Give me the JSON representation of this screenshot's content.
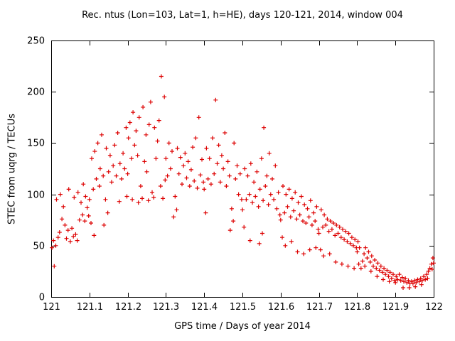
{
  "chart_data": {
    "type": "scatter",
    "title": "Rec. ntus (Lon=103, Lat=1, h=HE), days 120-121, 2014, window 004",
    "xlabel": "GPS time / Days of year 2014",
    "ylabel": "STEC from uqrg / TECUs",
    "xlim": [
      121,
      122
    ],
    "ylim": [
      0,
      250
    ],
    "grid": false,
    "legend": "none",
    "frame_color": "#000000",
    "background": "#ffffff",
    "marker": {
      "shape": "plus",
      "color": "#dd0000"
    },
    "x_ticks": [
      {
        "v": 121,
        "label": "121"
      },
      {
        "v": 121.1,
        "label": "121.1"
      },
      {
        "v": 121.2,
        "label": "121.2"
      },
      {
        "v": 121.3,
        "label": "121.3"
      },
      {
        "v": 121.4,
        "label": "121.4"
      },
      {
        "v": 121.5,
        "label": "121.5"
      },
      {
        "v": 121.6,
        "label": "121.6"
      },
      {
        "v": 121.7,
        "label": "121.7"
      },
      {
        "v": 121.8,
        "label": "121.8"
      },
      {
        "v": 121.9,
        "label": "121.9"
      },
      {
        "v": 122,
        "label": "122"
      }
    ],
    "y_ticks": [
      {
        "v": 0,
        "label": "0"
      },
      {
        "v": 50,
        "label": "50"
      },
      {
        "v": 100,
        "label": "100"
      },
      {
        "v": 150,
        "label": "150"
      },
      {
        "v": 200,
        "label": "200"
      },
      {
        "v": 250,
        "label": "250"
      }
    ],
    "points": [
      [
        121.002,
        48
      ],
      [
        121.006,
        55
      ],
      [
        121.008,
        30
      ],
      [
        121.012,
        50
      ],
      [
        121.014,
        95
      ],
      [
        121.018,
        58
      ],
      [
        121.022,
        63
      ],
      [
        121.024,
        100
      ],
      [
        121.028,
        76
      ],
      [
        121.032,
        88
      ],
      [
        121.036,
        70
      ],
      [
        121.04,
        57
      ],
      [
        121.044,
        65
      ],
      [
        121.046,
        105
      ],
      [
        121.05,
        54
      ],
      [
        121.054,
        67
      ],
      [
        121.058,
        59
      ],
      [
        121.06,
        97
      ],
      [
        121.064,
        61
      ],
      [
        121.068,
        55
      ],
      [
        121.07,
        102
      ],
      [
        121.074,
        75
      ],
      [
        121.078,
        92
      ],
      [
        121.082,
        80
      ],
      [
        121.084,
        110
      ],
      [
        121.088,
        74
      ],
      [
        121.09,
        98
      ],
      [
        121.094,
        87
      ],
      [
        121.098,
        79
      ],
      [
        121.1,
        95
      ],
      [
        121.104,
        72
      ],
      [
        121.106,
        135
      ],
      [
        121.11,
        105
      ],
      [
        121.112,
        60
      ],
      [
        121.114,
        142
      ],
      [
        121.118,
        115
      ],
      [
        121.122,
        150
      ],
      [
        121.126,
        108
      ],
      [
        121.128,
        125
      ],
      [
        121.132,
        158
      ],
      [
        121.136,
        118
      ],
      [
        121.138,
        70
      ],
      [
        121.142,
        95
      ],
      [
        121.144,
        145
      ],
      [
        121.148,
        82
      ],
      [
        121.15,
        122
      ],
      [
        121.154,
        138
      ],
      [
        121.158,
        112
      ],
      [
        121.162,
        128
      ],
      [
        121.166,
        148
      ],
      [
        121.17,
        118
      ],
      [
        121.174,
        160
      ],
      [
        121.178,
        93
      ],
      [
        121.18,
        130
      ],
      [
        121.184,
        115
      ],
      [
        121.188,
        140
      ],
      [
        121.192,
        125
      ],
      [
        121.196,
        165
      ],
      [
        121.198,
        98
      ],
      [
        121.2,
        120
      ],
      [
        121.202,
        155
      ],
      [
        121.206,
        170
      ],
      [
        121.21,
        135
      ],
      [
        121.212,
        95
      ],
      [
        121.214,
        180
      ],
      [
        121.218,
        148
      ],
      [
        121.222,
        162
      ],
      [
        121.226,
        138
      ],
      [
        121.228,
        92
      ],
      [
        121.23,
        175
      ],
      [
        121.234,
        108
      ],
      [
        121.238,
        96
      ],
      [
        121.24,
        185
      ],
      [
        121.244,
        132
      ],
      [
        121.248,
        158
      ],
      [
        121.25,
        122
      ],
      [
        121.254,
        94
      ],
      [
        121.256,
        168
      ],
      [
        121.26,
        190
      ],
      [
        121.264,
        102
      ],
      [
        121.268,
        97
      ],
      [
        121.27,
        165
      ],
      [
        121.274,
        135
      ],
      [
        121.278,
        152
      ],
      [
        121.282,
        172
      ],
      [
        121.286,
        108
      ],
      [
        121.288,
        215
      ],
      [
        121.292,
        96
      ],
      [
        121.296,
        195
      ],
      [
        121.298,
        114
      ],
      [
        121.3,
        135
      ],
      [
        121.304,
        118
      ],
      [
        121.308,
        150
      ],
      [
        121.312,
        125
      ],
      [
        121.316,
        142
      ],
      [
        121.32,
        78
      ],
      [
        121.324,
        98
      ],
      [
        121.328,
        85
      ],
      [
        121.33,
        145
      ],
      [
        121.334,
        120
      ],
      [
        121.338,
        136
      ],
      [
        121.342,
        110
      ],
      [
        121.346,
        128
      ],
      [
        121.35,
        140
      ],
      [
        121.354,
        116
      ],
      [
        121.358,
        132
      ],
      [
        121.362,
        108
      ],
      [
        121.366,
        124
      ],
      [
        121.37,
        146
      ],
      [
        121.374,
        113
      ],
      [
        121.378,
        155
      ],
      [
        121.382,
        106
      ],
      [
        121.386,
        175
      ],
      [
        121.39,
        119
      ],
      [
        121.394,
        134
      ],
      [
        121.398,
        112
      ],
      [
        121.4,
        105
      ],
      [
        121.404,
        82
      ],
      [
        121.406,
        145
      ],
      [
        121.41,
        115
      ],
      [
        121.414,
        135
      ],
      [
        121.418,
        110
      ],
      [
        121.422,
        155
      ],
      [
        121.426,
        120
      ],
      [
        121.43,
        192
      ],
      [
        121.434,
        130
      ],
      [
        121.438,
        148
      ],
      [
        121.442,
        112
      ],
      [
        121.446,
        138
      ],
      [
        121.45,
        125
      ],
      [
        121.454,
        160
      ],
      [
        121.458,
        108
      ],
      [
        121.462,
        132
      ],
      [
        121.466,
        118
      ],
      [
        121.468,
        65
      ],
      [
        121.472,
        86
      ],
      [
        121.476,
        74
      ],
      [
        121.478,
        150
      ],
      [
        121.482,
        115
      ],
      [
        121.486,
        128
      ],
      [
        121.49,
        100
      ],
      [
        121.494,
        120
      ],
      [
        121.498,
        95
      ],
      [
        121.5,
        85
      ],
      [
        121.504,
        68
      ],
      [
        121.506,
        125
      ],
      [
        121.51,
        95
      ],
      [
        121.514,
        118
      ],
      [
        121.518,
        100
      ],
      [
        121.52,
        55
      ],
      [
        121.522,
        130
      ],
      [
        121.526,
        92
      ],
      [
        121.53,
        112
      ],
      [
        121.534,
        98
      ],
      [
        121.538,
        122
      ],
      [
        121.542,
        88
      ],
      [
        121.544,
        52
      ],
      [
        121.546,
        105
      ],
      [
        121.55,
        135
      ],
      [
        121.552,
        62
      ],
      [
        121.554,
        94
      ],
      [
        121.556,
        165
      ],
      [
        121.56,
        108
      ],
      [
        121.564,
        118
      ],
      [
        121.568,
        90
      ],
      [
        121.57,
        140
      ],
      [
        121.574,
        100
      ],
      [
        121.578,
        115
      ],
      [
        121.582,
        95
      ],
      [
        121.586,
        128
      ],
      [
        121.59,
        86
      ],
      [
        121.594,
        102
      ],
      [
        121.598,
        80
      ],
      [
        121.6,
        75
      ],
      [
        121.604,
        58
      ],
      [
        121.606,
        108
      ],
      [
        121.61,
        82
      ],
      [
        121.612,
        50
      ],
      [
        121.614,
        100
      ],
      [
        121.618,
        88
      ],
      [
        121.622,
        105
      ],
      [
        121.626,
        78
      ],
      [
        121.628,
        54
      ],
      [
        121.63,
        96
      ],
      [
        121.634,
        84
      ],
      [
        121.638,
        102
      ],
      [
        121.642,
        76
      ],
      [
        121.644,
        44
      ],
      [
        121.646,
        92
      ],
      [
        121.65,
        80
      ],
      [
        121.654,
        98
      ],
      [
        121.658,
        74
      ],
      [
        121.66,
        42
      ],
      [
        121.662,
        90
      ],
      [
        121.666,
        72
      ],
      [
        121.67,
        86
      ],
      [
        121.674,
        78
      ],
      [
        121.676,
        46
      ],
      [
        121.678,
        94
      ],
      [
        121.682,
        70
      ],
      [
        121.686,
        82
      ],
      [
        121.69,
        74
      ],
      [
        121.692,
        48
      ],
      [
        121.694,
        88
      ],
      [
        121.698,
        66
      ],
      [
        121.7,
        62
      ],
      [
        121.704,
        46
      ],
      [
        121.706,
        85
      ],
      [
        121.71,
        68
      ],
      [
        121.712,
        40
      ],
      [
        121.714,
        80
      ],
      [
        121.718,
        70
      ],
      [
        121.722,
        76
      ],
      [
        121.726,
        64
      ],
      [
        121.728,
        42
      ],
      [
        121.73,
        74
      ],
      [
        121.734,
        66
      ],
      [
        121.738,
        72
      ],
      [
        121.742,
        60
      ],
      [
        121.744,
        34
      ],
      [
        121.746,
        70
      ],
      [
        121.75,
        62
      ],
      [
        121.754,
        68
      ],
      [
        121.758,
        58
      ],
      [
        121.76,
        32
      ],
      [
        121.762,
        66
      ],
      [
        121.766,
        56
      ],
      [
        121.77,
        64
      ],
      [
        121.774,
        54
      ],
      [
        121.776,
        30
      ],
      [
        121.778,
        62
      ],
      [
        121.782,
        52
      ],
      [
        121.786,
        58
      ],
      [
        121.79,
        50
      ],
      [
        121.792,
        28
      ],
      [
        121.794,
        56
      ],
      [
        121.798,
        48
      ],
      [
        121.8,
        44
      ],
      [
        121.802,
        54
      ],
      [
        121.804,
        32
      ],
      [
        121.806,
        48
      ],
      [
        121.81,
        28
      ],
      [
        121.814,
        35
      ],
      [
        121.818,
        42
      ],
      [
        121.82,
        30
      ],
      [
        121.822,
        48
      ],
      [
        121.826,
        38
      ],
      [
        121.83,
        44
      ],
      [
        121.834,
        34
      ],
      [
        121.836,
        25
      ],
      [
        121.838,
        40
      ],
      [
        121.842,
        30
      ],
      [
        121.846,
        36
      ],
      [
        121.85,
        28
      ],
      [
        121.852,
        20
      ],
      [
        121.854,
        33
      ],
      [
        121.858,
        26
      ],
      [
        121.862,
        30
      ],
      [
        121.866,
        24
      ],
      [
        121.868,
        17
      ],
      [
        121.87,
        28
      ],
      [
        121.874,
        22
      ],
      [
        121.878,
        26
      ],
      [
        121.882,
        20
      ],
      [
        121.884,
        15
      ],
      [
        121.886,
        24
      ],
      [
        121.89,
        18
      ],
      [
        121.894,
        22
      ],
      [
        121.898,
        16
      ],
      [
        121.9,
        14
      ],
      [
        121.902,
        20
      ],
      [
        121.906,
        17
      ],
      [
        121.91,
        22
      ],
      [
        121.914,
        16
      ],
      [
        121.918,
        19
      ],
      [
        121.92,
        9
      ],
      [
        121.922,
        15
      ],
      [
        121.926,
        18
      ],
      [
        121.93,
        14
      ],
      [
        121.934,
        16
      ],
      [
        121.936,
        9
      ],
      [
        121.938,
        13
      ],
      [
        121.942,
        15
      ],
      [
        121.946,
        13
      ],
      [
        121.95,
        16
      ],
      [
        121.952,
        10
      ],
      [
        121.954,
        14
      ],
      [
        121.958,
        17
      ],
      [
        121.962,
        15
      ],
      [
        121.966,
        18
      ],
      [
        121.968,
        12
      ],
      [
        121.97,
        16
      ],
      [
        121.974,
        20
      ],
      [
        121.978,
        17
      ],
      [
        121.982,
        22
      ],
      [
        121.984,
        18
      ],
      [
        121.986,
        25
      ],
      [
        121.99,
        28
      ],
      [
        121.994,
        32
      ],
      [
        121.996,
        27
      ],
      [
        121.998,
        38
      ],
      [
        122.0,
        33
      ]
    ]
  }
}
